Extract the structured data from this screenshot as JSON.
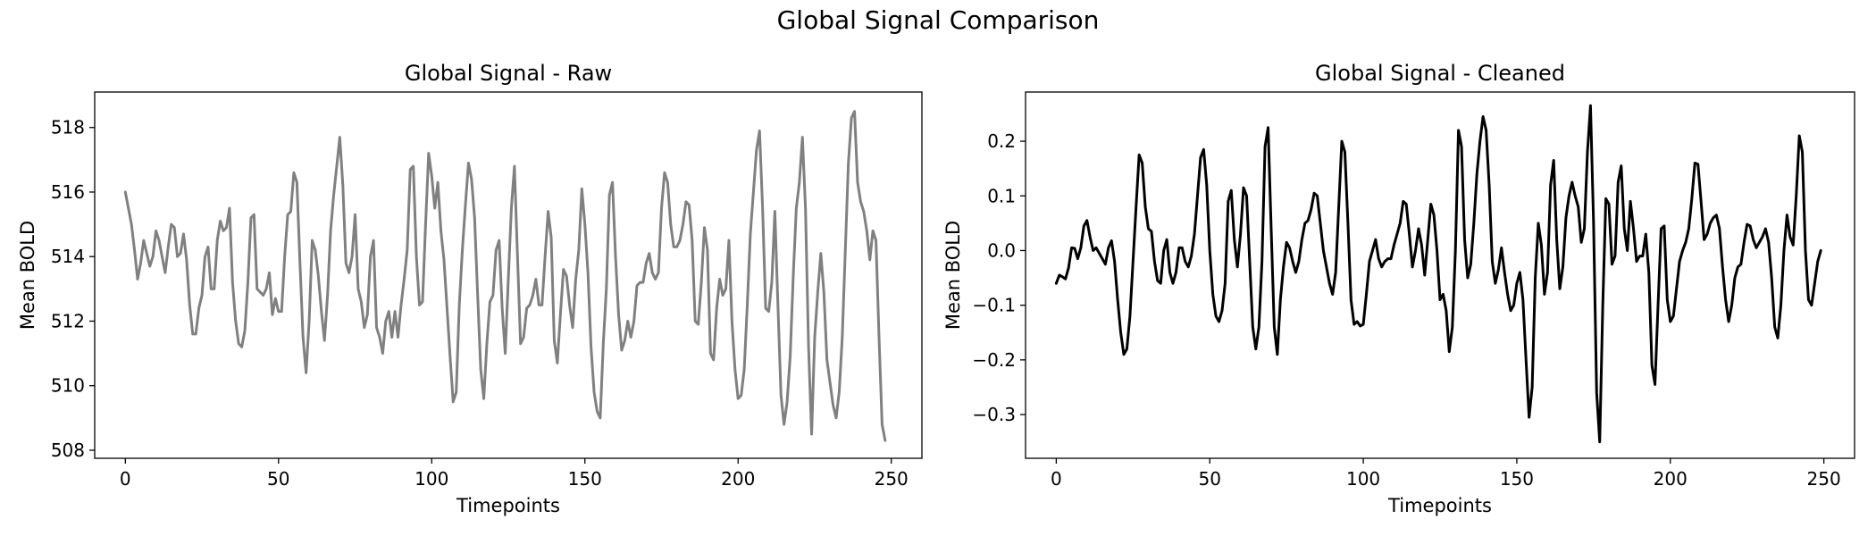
{
  "figure": {
    "suptitle": "Global Signal Comparison"
  },
  "chart_data": [
    {
      "type": "line",
      "title": "Global Signal - Raw",
      "xlabel": "Timepoints",
      "ylabel": "Mean BOLD",
      "xlim": [
        -10,
        260
      ],
      "ylim": [
        507.75,
        519.1
      ],
      "xticks": [
        0,
        50,
        100,
        150,
        200,
        250
      ],
      "yticks": [
        508,
        510,
        512,
        514,
        516,
        518
      ],
      "xtick_labels": [
        "0",
        "50",
        "100",
        "150",
        "200",
        "250"
      ],
      "ytick_labels": [
        "508",
        "510",
        "512",
        "514",
        "516",
        "518"
      ],
      "grid": false,
      "color": "#808080",
      "series": [
        {
          "x_start": 0,
          "x_step": 1,
          "values": [
            516.0,
            515.5,
            515.0,
            514.2,
            513.3,
            513.8,
            514.5,
            514.1,
            513.7,
            514.0,
            514.8,
            514.5,
            514.0,
            513.5,
            514.3,
            515.0,
            514.9,
            514.0,
            514.1,
            514.7,
            513.9,
            512.5,
            511.6,
            511.6,
            512.4,
            512.8,
            514.0,
            514.3,
            513.0,
            513.0,
            514.5,
            515.1,
            514.8,
            514.9,
            515.5,
            513.2,
            512.0,
            511.3,
            511.2,
            511.7,
            513.2,
            515.2,
            515.3,
            513.0,
            512.9,
            512.8,
            513.0,
            513.5,
            512.2,
            512.7,
            512.3,
            512.3,
            514.0,
            515.3,
            515.4,
            516.6,
            516.3,
            513.8,
            511.5,
            510.4,
            512.0,
            514.5,
            514.2,
            513.4,
            512.3,
            511.4,
            512.8,
            514.8,
            515.9,
            516.8,
            517.7,
            516.2,
            513.8,
            513.5,
            514.0,
            515.3,
            513.0,
            512.6,
            511.8,
            512.2,
            514.0,
            514.5,
            511.8,
            511.5,
            511.0,
            512.0,
            512.3,
            511.5,
            512.3,
            511.5,
            512.5,
            513.3,
            514.2,
            516.7,
            516.8,
            514.0,
            512.5,
            512.6,
            515.0,
            517.2,
            516.5,
            515.5,
            516.3,
            514.8,
            513.9,
            512.4,
            510.9,
            509.5,
            509.8,
            512.5,
            514.2,
            515.6,
            516.9,
            516.4,
            515.2,
            512.8,
            510.5,
            509.6,
            511.3,
            512.6,
            512.8,
            514.2,
            514.5,
            512.4,
            511.0,
            513.3,
            515.5,
            516.8,
            514.0,
            511.3,
            511.5,
            512.4,
            512.5,
            512.8,
            513.3,
            512.5,
            512.5,
            514.0,
            515.4,
            514.6,
            511.4,
            510.7,
            512.2,
            513.6,
            513.4,
            512.5,
            511.8,
            513.3,
            514.2,
            516.1,
            515.0,
            513.5,
            511.2,
            509.8,
            509.2,
            509.0,
            511.3,
            513.0,
            515.9,
            516.3,
            514.0,
            512.2,
            511.1,
            511.4,
            512.0,
            511.5,
            512.0,
            513.1,
            513.2,
            513.2,
            513.8,
            514.1,
            513.5,
            513.3,
            513.5,
            515.5,
            516.6,
            516.3,
            515.0,
            514.3,
            514.3,
            514.5,
            515.0,
            515.7,
            515.6,
            514.5,
            512.0,
            511.9,
            513.2,
            514.9,
            514.2,
            511.0,
            510.8,
            512.4,
            513.3,
            512.8,
            513.0,
            514.5,
            512.0,
            510.5,
            509.6,
            509.7,
            510.5,
            512.5,
            514.7,
            516.0,
            517.3,
            517.9,
            515.5,
            512.4,
            512.3,
            513.2,
            515.4,
            512.5,
            509.7,
            508.8,
            509.5,
            510.9,
            513.4,
            515.5,
            516.3,
            517.7,
            515.5,
            511.2,
            508.5,
            511.5,
            512.9,
            514.1,
            512.9,
            510.8,
            510.1,
            509.4,
            509.0,
            509.8,
            511.5,
            514.2,
            516.9,
            518.3,
            518.5,
            516.3,
            515.7,
            515.4,
            514.8,
            513.9,
            514.8,
            514.5,
            511.5,
            508.8,
            508.3
          ]
        }
      ]
    },
    {
      "type": "line",
      "title": "Global Signal - Cleaned",
      "xlabel": "Timepoints",
      "ylabel": "Mean BOLD",
      "xlim": [
        -10,
        260
      ],
      "ylim": [
        -0.38,
        0.29
      ],
      "xticks": [
        0,
        50,
        100,
        150,
        200,
        250
      ],
      "yticks": [
        -0.3,
        -0.2,
        -0.1,
        0.0,
        0.1,
        0.2
      ],
      "xtick_labels": [
        "0",
        "50",
        "100",
        "150",
        "200",
        "250"
      ],
      "ytick_labels": [
        "−0.3",
        "−0.2",
        "−0.1",
        "0.0",
        "0.1",
        "0.2"
      ],
      "grid": false,
      "color": "#000000",
      "series": [
        {
          "x_start": 0,
          "x_step": 1,
          "values": [
            -0.06,
            -0.045,
            -0.048,
            -0.052,
            -0.032,
            0.005,
            0.004,
            -0.015,
            0.005,
            0.045,
            0.055,
            0.025,
            0.0,
            0.005,
            -0.005,
            -0.015,
            -0.025,
            0.005,
            0.018,
            -0.02,
            -0.09,
            -0.15,
            -0.19,
            -0.18,
            -0.12,
            -0.02,
            0.08,
            0.175,
            0.16,
            0.08,
            0.04,
            0.035,
            -0.02,
            -0.055,
            -0.06,
            0.0,
            0.02,
            -0.04,
            -0.06,
            -0.04,
            0.005,
            0.005,
            -0.02,
            -0.03,
            -0.01,
            0.03,
            0.1,
            0.17,
            0.185,
            0.12,
            0.0,
            -0.08,
            -0.12,
            -0.13,
            -0.11,
            -0.06,
            0.09,
            0.11,
            0.02,
            -0.03,
            0.03,
            0.115,
            0.1,
            -0.02,
            -0.14,
            -0.18,
            -0.14,
            -0.02,
            0.19,
            0.225,
            0.04,
            -0.14,
            -0.19,
            -0.09,
            -0.03,
            0.015,
            0.005,
            -0.02,
            -0.04,
            -0.02,
            0.02,
            0.05,
            0.055,
            0.075,
            0.105,
            0.1,
            0.05,
            0.0,
            -0.03,
            -0.06,
            -0.08,
            -0.04,
            0.08,
            0.2,
            0.18,
            0.05,
            -0.09,
            -0.135,
            -0.13,
            -0.138,
            -0.135,
            -0.08,
            -0.02,
            0.0,
            0.02,
            -0.015,
            -0.03,
            -0.02,
            -0.015,
            -0.015,
            0.01,
            0.03,
            0.05,
            0.09,
            0.085,
            0.03,
            -0.03,
            0.0,
            0.04,
            0.01,
            -0.045,
            0.02,
            0.085,
            0.065,
            0.0,
            -0.09,
            -0.08,
            -0.11,
            -0.185,
            -0.14,
            0.0,
            0.22,
            0.19,
            0.02,
            -0.05,
            -0.025,
            0.05,
            0.14,
            0.2,
            0.245,
            0.22,
            0.12,
            -0.02,
            -0.06,
            -0.035,
            0.005,
            -0.04,
            -0.08,
            -0.11,
            -0.1,
            -0.06,
            -0.04,
            -0.09,
            -0.2,
            -0.305,
            -0.25,
            -0.05,
            0.05,
            0.01,
            -0.08,
            -0.04,
            0.12,
            0.165,
            0.02,
            -0.07,
            -0.03,
            0.06,
            0.1,
            0.125,
            0.1,
            0.08,
            0.015,
            0.04,
            0.18,
            0.265,
            0.05,
            -0.26,
            -0.35,
            -0.1,
            0.095,
            0.085,
            -0.025,
            -0.01,
            0.125,
            0.155,
            0.04,
            0.0,
            0.09,
            0.04,
            -0.02,
            -0.01,
            -0.01,
            0.03,
            -0.04,
            -0.21,
            -0.245,
            -0.1,
            0.04,
            0.045,
            -0.09,
            -0.13,
            -0.12,
            -0.07,
            -0.02,
            0.0,
            0.015,
            0.04,
            0.095,
            0.16,
            0.158,
            0.09,
            0.02,
            0.03,
            0.05,
            0.06,
            0.065,
            0.04,
            -0.03,
            -0.09,
            -0.13,
            -0.1,
            -0.05,
            -0.03,
            -0.025,
            0.015,
            0.048,
            0.045,
            0.02,
            0.005,
            0.015,
            0.025,
            0.04,
            0.015,
            -0.05,
            -0.14,
            -0.16,
            -0.1,
            0.0,
            0.065,
            0.025,
            0.01,
            0.1,
            0.21,
            0.18,
            0.0,
            -0.09,
            -0.1,
            -0.06,
            -0.02,
            0.0
          ]
        }
      ]
    }
  ]
}
